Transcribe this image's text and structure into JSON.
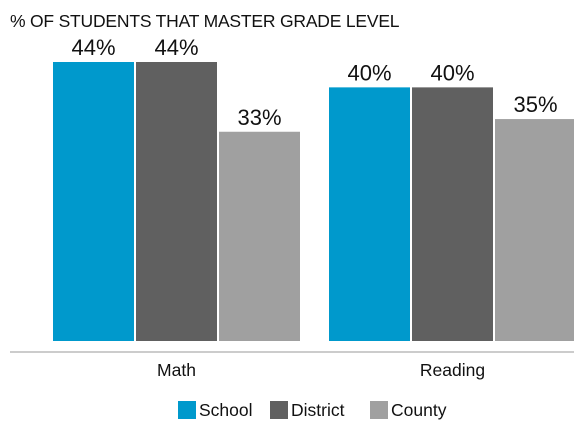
{
  "chart_data": {
    "type": "bar",
    "title": "% OF STUDENTS THAT MASTER GRADE LEVEL",
    "categories": [
      "Math",
      "Reading"
    ],
    "series": [
      {
        "name": "School",
        "values": [
          44,
          40
        ],
        "labels": [
          "44%",
          "40%"
        ],
        "color": "#0099cc"
      },
      {
        "name": "District",
        "values": [
          44,
          40
        ],
        "labels": [
          "44%",
          "40%"
        ],
        "color": "#606060"
      },
      {
        "name": "County",
        "values": [
          33,
          35
        ],
        "labels": [
          "33%",
          "35%"
        ],
        "color": "#a0a0a0"
      }
    ],
    "ylim": [
      0,
      44
    ],
    "grid": false,
    "legend_position": "bottom-center",
    "value_unit": "%"
  }
}
